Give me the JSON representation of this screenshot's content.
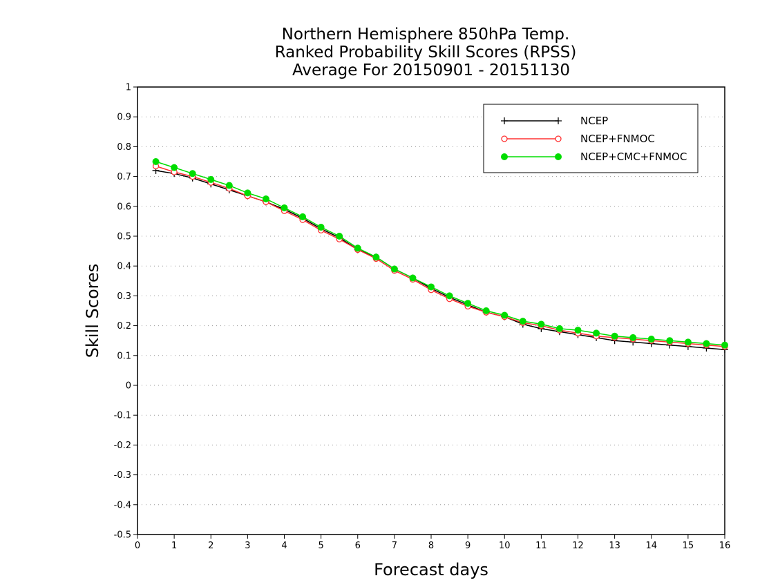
{
  "chart_data": {
    "type": "line",
    "title_lines": [
      "Northern Hemisphere 850hPa Temp.",
      "Ranked Probability Skill Scores (RPSS)",
      "Average For 20150901 - 20151130"
    ],
    "xlabel": "Forecast days",
    "ylabel": "Skill Scores",
    "xlim": [
      0,
      16
    ],
    "ylim": [
      -0.5,
      1
    ],
    "x_ticks": [
      "0",
      "1",
      "2",
      "3",
      "4",
      "5",
      "6",
      "7",
      "8",
      "9",
      "10",
      "11",
      "12",
      "13",
      "14",
      "15",
      "16"
    ],
    "y_ticks": [
      "1",
      "0.9",
      "0.8",
      "0.7",
      "0.6",
      "0.5",
      "0.4",
      "0.3",
      "0.2",
      "0.1",
      "0",
      "-0.1",
      "-0.2",
      "-0.3",
      "-0.4",
      "-0.5"
    ],
    "grid": "horizontal dotted",
    "legend_position": "top-right",
    "x": [
      0.5,
      1,
      1.5,
      2,
      2.5,
      3,
      3.5,
      4,
      4.5,
      5,
      5.5,
      6,
      6.5,
      7,
      7.5,
      8,
      8.5,
      9,
      9.5,
      10,
      10.5,
      11,
      11.5,
      12,
      12.5,
      13,
      13.5,
      14,
      14.5,
      15,
      15.5,
      16
    ],
    "series": [
      {
        "name": "NCEP",
        "color": "#000000",
        "marker": "plus",
        "values": [
          0.72,
          0.71,
          0.695,
          0.675,
          0.655,
          0.635,
          0.615,
          0.59,
          0.56,
          0.525,
          0.495,
          0.455,
          0.43,
          0.39,
          0.36,
          0.325,
          0.295,
          0.27,
          0.245,
          0.23,
          0.205,
          0.19,
          0.18,
          0.17,
          0.16,
          0.15,
          0.145,
          0.14,
          0.135,
          0.13,
          0.125,
          0.12
        ]
      },
      {
        "name": "NCEP+FNMOC",
        "color": "#ff3030",
        "marker": "open-circle",
        "values": [
          0.735,
          0.715,
          0.7,
          0.68,
          0.66,
          0.635,
          0.615,
          0.585,
          0.555,
          0.52,
          0.49,
          0.455,
          0.425,
          0.385,
          0.355,
          0.32,
          0.29,
          0.265,
          0.245,
          0.23,
          0.21,
          0.2,
          0.185,
          0.175,
          0.165,
          0.16,
          0.155,
          0.15,
          0.145,
          0.14,
          0.135,
          0.13
        ]
      },
      {
        "name": "NCEP+CMC+FNMOC",
        "color": "#00dd00",
        "marker": "filled-circle",
        "values": [
          0.75,
          0.73,
          0.71,
          0.69,
          0.67,
          0.645,
          0.625,
          0.595,
          0.565,
          0.53,
          0.5,
          0.46,
          0.43,
          0.39,
          0.36,
          0.33,
          0.3,
          0.275,
          0.25,
          0.235,
          0.215,
          0.205,
          0.19,
          0.185,
          0.175,
          0.165,
          0.16,
          0.155,
          0.15,
          0.145,
          0.14,
          0.135
        ]
      }
    ]
  }
}
